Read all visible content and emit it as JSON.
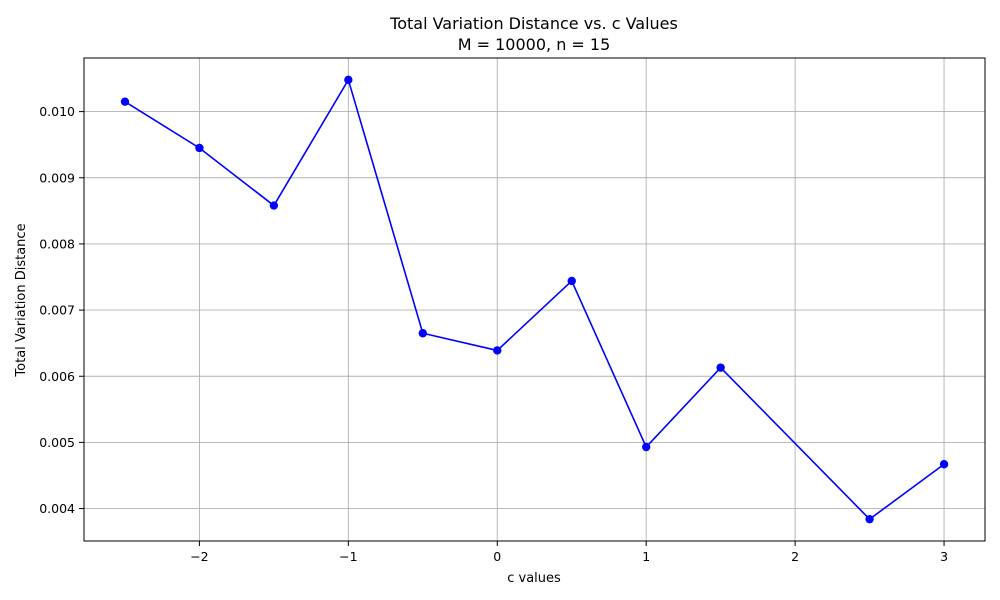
{
  "chart_data": {
    "type": "line",
    "title": "Total Variation Distance vs. c Values",
    "subtitle": "M = 10000, n = 15",
    "xlabel": "c values",
    "ylabel": "Total Variation Distance",
    "xlim": [
      -2.775,
      3.275
    ],
    "ylim": [
      0.00351,
      0.01081
    ],
    "xticks": [
      -2,
      -1,
      0,
      1,
      2,
      3
    ],
    "xtick_labels": [
      "−2",
      "−1",
      "0",
      "1",
      "2",
      "3"
    ],
    "yticks": [
      0.004,
      0.005,
      0.006,
      0.007,
      0.008,
      0.009,
      0.01
    ],
    "ytick_labels": [
      "0.004",
      "0.005",
      "0.006",
      "0.007",
      "0.008",
      "0.009",
      "0.010"
    ],
    "grid": true,
    "series": [
      {
        "color": "#0000ff",
        "marker": "circle",
        "x": [
          -2.5,
          -2.0,
          -1.5,
          -1.0,
          -0.5,
          0.0,
          0.5,
          1.0,
          1.5,
          2.5,
          3.0
        ],
        "y": [
          0.01015,
          0.00945,
          0.00858,
          0.01048,
          0.00665,
          0.00639,
          0.00744,
          0.00493,
          0.00613,
          0.00384,
          0.00467
        ]
      }
    ]
  }
}
